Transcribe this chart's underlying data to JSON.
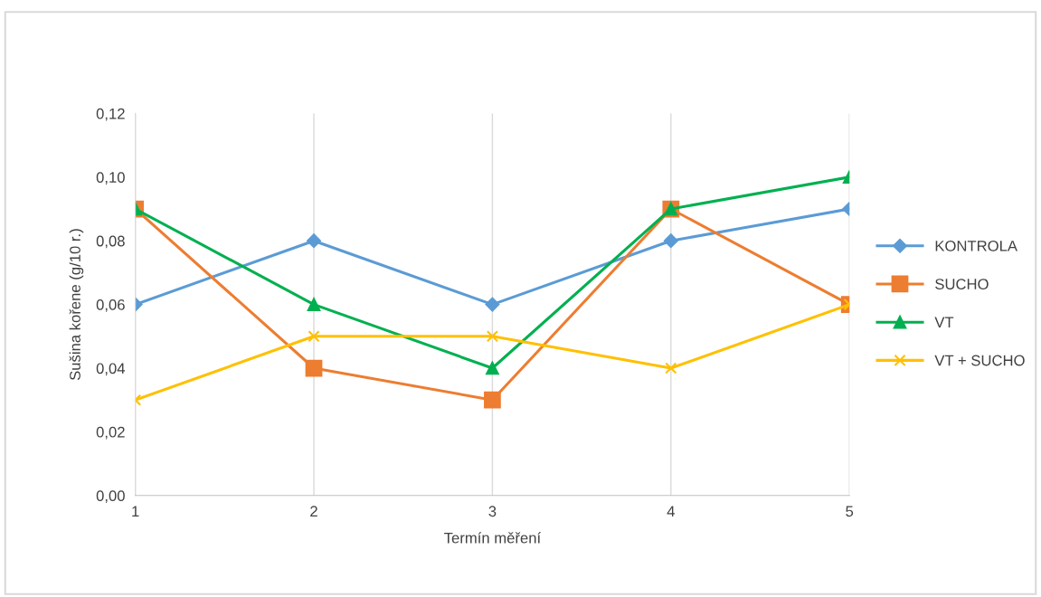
{
  "chart_data": {
    "type": "line",
    "xlabel": "Termín měření",
    "ylabel": "Sušina kořene (g/10 r.)",
    "categories": [
      "1",
      "2",
      "3",
      "4",
      "5"
    ],
    "series": [
      {
        "name": "KONTROLA",
        "color": "#5b9bd5",
        "marker": "diamond",
        "values": [
          0.06,
          0.08,
          0.06,
          0.08,
          0.09
        ]
      },
      {
        "name": "SUCHO",
        "color": "#ed7d31",
        "marker": "square",
        "values": [
          0.09,
          0.04,
          0.03,
          0.09,
          0.06
        ]
      },
      {
        "name": "VT",
        "color": "#00b050",
        "marker": "triangle",
        "values": [
          0.09,
          0.06,
          0.04,
          0.09,
          0.1
        ]
      },
      {
        "name": "VT + SUCHO",
        "color": "#ffc000",
        "marker": "cross",
        "values": [
          0.03,
          0.05,
          0.05,
          0.04,
          0.06
        ]
      }
    ],
    "ylim": [
      0,
      0.12
    ],
    "yticks": [
      {
        "value": 0,
        "label": "0,00"
      },
      {
        "value": 0.02,
        "label": "0,02"
      },
      {
        "value": 0.04,
        "label": "0,04"
      },
      {
        "value": 0.06,
        "label": "0,06"
      },
      {
        "value": 0.08,
        "label": "0,08"
      },
      {
        "value": 0.1,
        "label": "0,10"
      },
      {
        "value": 0.12,
        "label": "0,12"
      }
    ],
    "grid": "x",
    "legend": "right",
    "line_style": "solid"
  }
}
